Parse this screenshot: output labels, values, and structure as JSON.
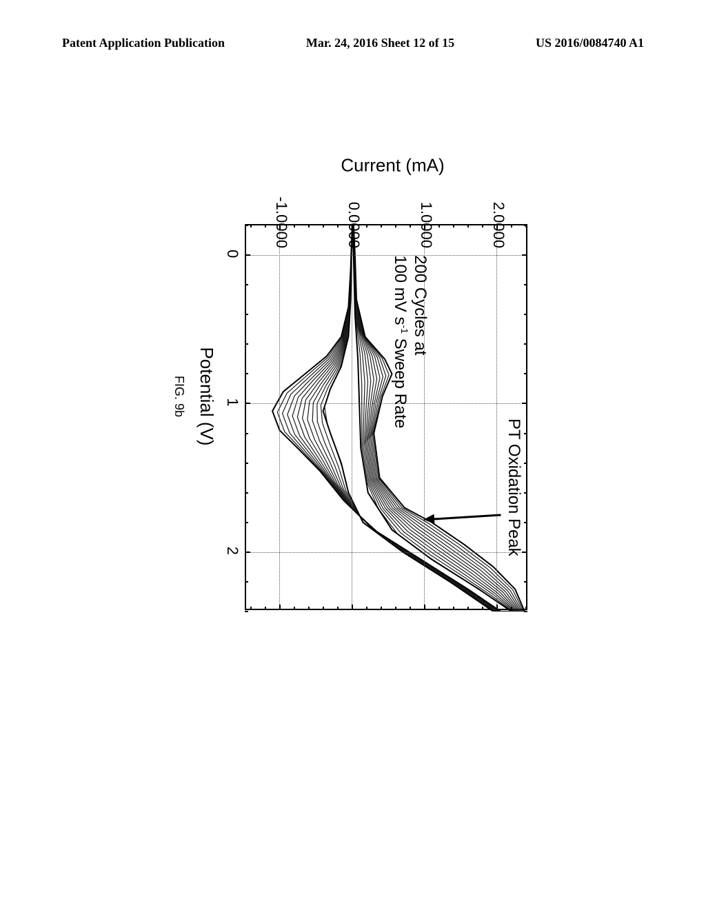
{
  "header": {
    "left": "Patent Application Publication",
    "center": "Mar. 24, 2016  Sheet 12 of 15",
    "right": "US 2016/0084740 A1"
  },
  "figure": {
    "caption": "FIG. 9b",
    "xlabel": "Potential (V)",
    "ylabel": "Current (mA)",
    "xlim": [
      -0.2,
      2.4
    ],
    "ylim": [
      -1.5,
      2.4
    ],
    "xtick_major": [
      0,
      1,
      2
    ],
    "xtick_labels": [
      "0",
      "1",
      "2"
    ],
    "ytick_major": [
      -1.0,
      0.0,
      1.0,
      2.0
    ],
    "ytick_labels": [
      "-1.0000",
      "0.0000",
      "1.0000",
      "2.0000"
    ],
    "xtick_minor_step": 0.2,
    "ytick_minor_step": 0.2,
    "grid_color": "#555555",
    "axis_color": "#000000",
    "background_color": "#ffffff",
    "tick_fontsize": 22,
    "label_fontsize": 26,
    "annotations": {
      "sweep": {
        "line1": "200 Cycles at",
        "line2_pre": "100 mV s",
        "line2_sup": "-1",
        "line2_post": " Sweep Rate",
        "x_anchor": 0.0,
        "y_anchor": 1.05
      },
      "peak": {
        "text": "PT Oxidation Peak",
        "x_anchor": 1.1,
        "y_anchor": 2.25
      },
      "arrow": {
        "from_x": 1.75,
        "from_y": 2.05,
        "to_x": 1.78,
        "to_y": 1.05
      }
    },
    "cv_curves": {
      "type": "cyclic_voltammogram_family",
      "description": "≈200 overlapping CV cycles, dark strokes",
      "n_cycles_drawn_approx": 12,
      "stroke_color": "#1a1a1a",
      "stroke_width": 1.2,
      "forward_envelope_outer": [
        [
          -0.2,
          0.02
        ],
        [
          0.0,
          0.04
        ],
        [
          0.3,
          0.06
        ],
        [
          0.55,
          0.18
        ],
        [
          0.7,
          0.45
        ],
        [
          0.8,
          0.55
        ],
        [
          0.95,
          0.42
        ],
        [
          1.2,
          0.3
        ],
        [
          1.5,
          0.38
        ],
        [
          1.7,
          0.72
        ],
        [
          1.8,
          1.1
        ],
        [
          1.95,
          1.55
        ],
        [
          2.1,
          1.95
        ],
        [
          2.25,
          2.25
        ],
        [
          2.4,
          2.38
        ]
      ],
      "forward_envelope_inner": [
        [
          -0.2,
          0.0
        ],
        [
          0.0,
          0.02
        ],
        [
          0.4,
          0.04
        ],
        [
          0.7,
          0.08
        ],
        [
          1.0,
          0.1
        ],
        [
          1.3,
          0.12
        ],
        [
          1.6,
          0.22
        ],
        [
          1.85,
          0.55
        ],
        [
          2.05,
          1.1
        ],
        [
          2.25,
          1.75
        ],
        [
          2.4,
          2.2
        ]
      ],
      "reverse_envelope_outer": [
        [
          2.4,
          2.05
        ],
        [
          2.25,
          1.6
        ],
        [
          2.05,
          0.95
        ],
        [
          1.85,
          0.3
        ],
        [
          1.65,
          -0.12
        ],
        [
          1.45,
          -0.45
        ],
        [
          1.3,
          -0.75
        ],
        [
          1.18,
          -1.0
        ],
        [
          1.05,
          -1.1
        ],
        [
          0.92,
          -0.95
        ],
        [
          0.8,
          -0.65
        ],
        [
          0.68,
          -0.35
        ],
        [
          0.55,
          -0.15
        ],
        [
          0.35,
          -0.05
        ],
        [
          0.1,
          -0.02
        ],
        [
          -0.2,
          0.0
        ]
      ],
      "reverse_envelope_inner": [
        [
          2.4,
          1.95
        ],
        [
          2.2,
          1.35
        ],
        [
          2.0,
          0.7
        ],
        [
          1.8,
          0.15
        ],
        [
          1.6,
          -0.05
        ],
        [
          1.4,
          -0.15
        ],
        [
          1.2,
          -0.3
        ],
        [
          1.05,
          -0.4
        ],
        [
          0.9,
          -0.3
        ],
        [
          0.75,
          -0.15
        ],
        [
          0.55,
          -0.05
        ],
        [
          0.3,
          -0.02
        ],
        [
          -0.2,
          0.0
        ]
      ]
    }
  }
}
